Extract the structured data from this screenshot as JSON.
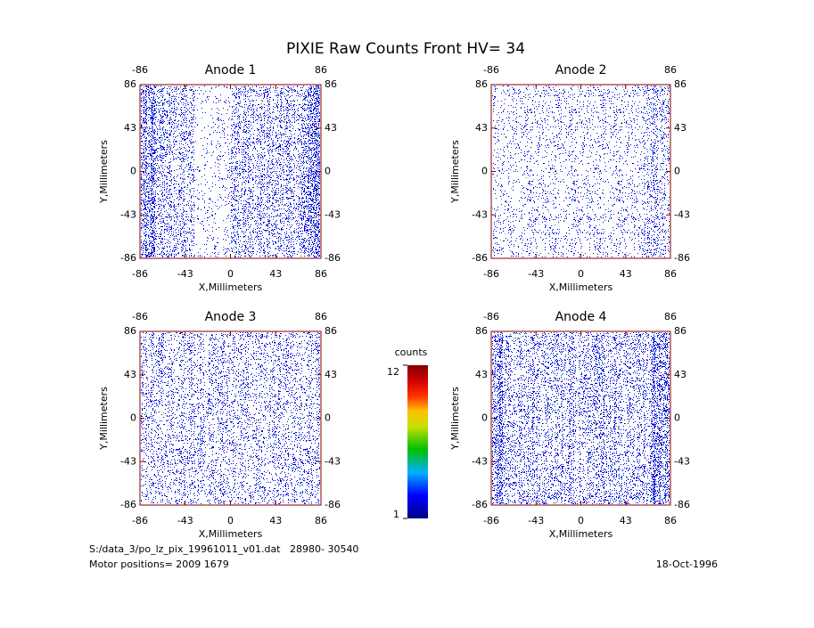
{
  "title": "PIXIE Raw Counts Front HV= 34",
  "chart_data": [
    {
      "type": "heatmap",
      "title": "Anode 1",
      "xlabel": "X,Millimeters",
      "ylabel": "Y,Millimeters",
      "xlim": [
        -86,
        86
      ],
      "ylim": [
        -86,
        86
      ],
      "xticks": [
        -86,
        -43,
        0,
        43,
        86
      ],
      "yticks": [
        -86,
        -43,
        0,
        43,
        86
      ]
    },
    {
      "type": "heatmap",
      "title": "Anode 2",
      "xlabel": "X,Millimeters",
      "ylabel": "Y,Millimeters",
      "xlim": [
        -86,
        86
      ],
      "ylim": [
        -86,
        86
      ],
      "xticks": [
        -86,
        -43,
        0,
        43,
        86
      ],
      "yticks": [
        -86,
        -43,
        0,
        43,
        86
      ]
    },
    {
      "type": "heatmap",
      "title": "Anode 3",
      "xlabel": "X,Millimeters",
      "ylabel": "Y,Millimeters",
      "xlim": [
        -86,
        86
      ],
      "ylim": [
        -86,
        86
      ],
      "xticks": [
        -86,
        -43,
        0,
        43,
        86
      ],
      "yticks": [
        -86,
        -43,
        0,
        43,
        86
      ]
    },
    {
      "type": "heatmap",
      "title": "Anode 4",
      "xlabel": "X,Millimeters",
      "ylabel": "Y,Millimeters",
      "xlim": [
        -86,
        86
      ],
      "ylim": [
        -86,
        86
      ],
      "xticks": [
        -86,
        -43,
        0,
        43,
        86
      ],
      "yticks": [
        -86,
        -43,
        0,
        43,
        86
      ]
    }
  ],
  "colorbar": {
    "label": "counts",
    "lim": [
      1,
      12
    ],
    "ticks": [
      1,
      12
    ]
  },
  "footer": {
    "file": "S:/data_3/po_lz_pix_19961011_v01.dat   28980- 30540",
    "motor": "Motor positions= 2009 1679",
    "date": "18-Oct-1996"
  }
}
